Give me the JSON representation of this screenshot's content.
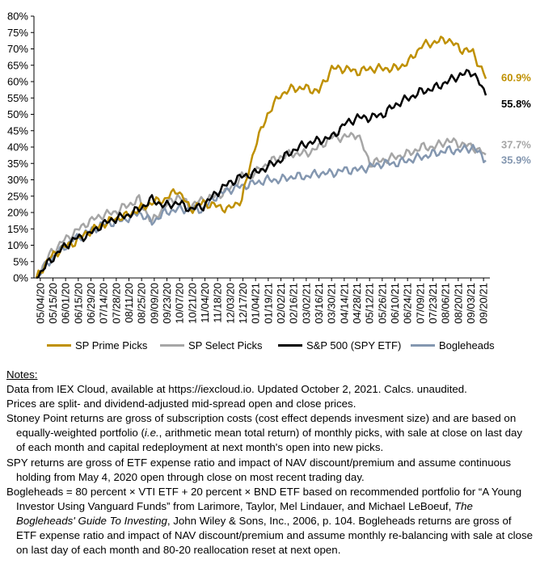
{
  "chart_data": {
    "type": "line",
    "title": "",
    "xlabel": "",
    "ylabel": "",
    "ylim": [
      0,
      80
    ],
    "yticks": [
      "0%",
      "5%",
      "10%",
      "15%",
      "20%",
      "25%",
      "30%",
      "35%",
      "40%",
      "45%",
      "50%",
      "55%",
      "60%",
      "65%",
      "70%",
      "75%",
      "80%"
    ],
    "x_tick_labels": [
      "05/04/20",
      "05/15/20",
      "06/01/20",
      "06/15/20",
      "06/29/20",
      "07/14/20",
      "07/28/20",
      "08/11/20",
      "08/25/20",
      "09/09/20",
      "09/23/20",
      "10/07/20",
      "10/21/20",
      "11/04/20",
      "11/18/20",
      "12/03/20",
      "12/17/20",
      "01/04/21",
      "01/19/21",
      "02/02/21",
      "02/16/21",
      "03/02/21",
      "03/16/21",
      "03/30/21",
      "04/14/21",
      "04/28/21",
      "05/12/21",
      "05/26/21",
      "06/10/21",
      "06/24/21",
      "07/09/21",
      "07/23/21",
      "08/06/21",
      "08/20/21",
      "09/03/21",
      "09/20/21"
    ],
    "grid": false,
    "legend_position": "bottom",
    "series": [
      {
        "name": "SP Prime Picks",
        "color": "#BF9000",
        "end_label": "60.9%",
        "values": [
          0,
          6,
          9,
          11,
          14,
          16,
          18,
          19,
          21,
          23,
          24,
          27,
          21,
          23,
          22,
          21,
          24,
          40,
          50,
          56,
          58,
          58,
          57,
          64,
          64,
          63,
          64,
          64,
          64,
          66,
          71,
          72,
          73,
          70,
          69,
          60.9
        ]
      },
      {
        "name": "SP Select Picks",
        "color": "#A6A6A6",
        "end_label": "37.7%",
        "values": [
          0,
          7,
          11,
          14,
          17,
          19,
          20,
          22,
          24,
          17,
          22,
          25,
          22,
          24,
          25,
          27,
          31,
          32,
          35,
          37,
          38,
          38,
          40,
          43,
          43,
          44,
          35,
          36,
          37,
          38,
          40,
          40,
          42,
          41,
          40,
          37.7
        ]
      },
      {
        "name": "S&P 500 (SPY ETF)",
        "color": "#000000",
        "end_label": "55.8%",
        "values": [
          0,
          5,
          9,
          12,
          13,
          16,
          18,
          19,
          21,
          24,
          22,
          23,
          21,
          22,
          26,
          29,
          31,
          32,
          34,
          36,
          39,
          41,
          42,
          43,
          47,
          49,
          49,
          50,
          53,
          55,
          57,
          58,
          60,
          62,
          63,
          55.8
        ]
      },
      {
        "name": "Bogleheads",
        "color": "#8497B0",
        "end_label": "35.9%",
        "values": [
          0,
          5,
          9,
          12,
          14,
          16,
          17,
          18,
          20,
          17,
          20,
          21,
          21,
          21,
          25,
          27,
          28,
          29,
          30,
          30,
          31,
          31,
          32,
          32,
          33,
          33,
          34,
          35,
          35,
          36,
          37,
          38,
          39,
          39,
          40,
          35.9
        ]
      }
    ]
  },
  "notes": {
    "title": "Notes:",
    "line1": "Data from IEX Cloud, available at https://iexcloud.io. Updated October 2, 2021. Calcs. unaudited.",
    "line2": "Prices are split- and dividend-adjusted mid-spread open and close prices.",
    "p1_a": "Stoney Point returns are gross of subscription costs (cost effect depends invesment size) and are based on equally-weighted portfolio (",
    "p1_ie": "i.e.",
    "p1_b": ", arithmetic mean total return) of monthly picks, with sale at close on last day of each month and capital redeployment at next month's open into new picks.",
    "p2": "SPY returns are gross of ETF expense ratio and impact of NAV discount/premium and assume continuous holding from May 4, 2020 open through close on most recent trading day.",
    "p3_a": "Bogleheads = 80 percent × VTI ETF + 20 percent × BND ETF based on recommended portfolio for “A Young Investor Using Vanguard Funds” from Larimore, Taylor, Mel Lindauer, and Michael LeBoeuf, ",
    "p3_book": "The Bogleheads' Guide To Investing",
    "p3_b": ", John Wiley & Sons, Inc., 2006, p. 104. Bogleheads returns are gross of ETF expense ratio and impact of NAV discount/premium and assume monthly re-balancing with sale at close on last day of each month and 80-20 reallocation reset at next open."
  }
}
